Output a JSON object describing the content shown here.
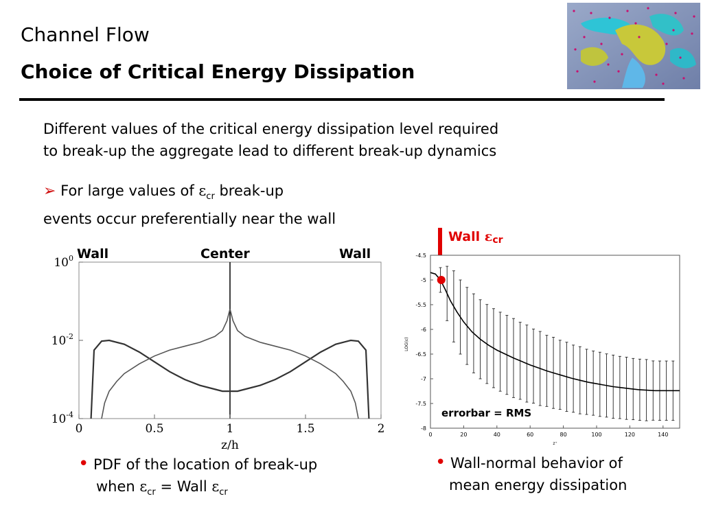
{
  "slide": {
    "title": "Channel Flow",
    "subtitle": "Choice of Critical Energy Dissipation",
    "intro_line1": "Different values of the critical energy dissipation level required",
    "intro_line2": "to break-up the aggregate lead to different break-up dynamics",
    "bullet_arrow": "➢",
    "bullet_pre": "For large values of ",
    "epsilon": "ε",
    "cr": "cr",
    "bullet_post": " break-up",
    "bullet_line2": "events occur preferentially near the wall",
    "caption_left_1": "PDF of the location of break-up",
    "caption_left_when": "when ",
    "caption_left_eq": " = Wall ",
    "caption_right_1": "Wall-normal behavior of",
    "caption_right_2": "mean energy dissipation",
    "bullet_dot": "•",
    "colors": {
      "accent": "#e00000",
      "text": "#000000"
    }
  },
  "chart_data": [
    {
      "type": "line",
      "xlabel": "z/h",
      "ylabel": "",
      "x_ticks": [
        "0",
        "0.5",
        "1",
        "1.5",
        "2"
      ],
      "y_ticks": [
        "10^0",
        "10^-2",
        "10^-4"
      ],
      "xlim": [
        0,
        2
      ],
      "ylim_log10": [
        -4,
        0
      ],
      "annotations": {
        "left": "Wall",
        "center": "Center",
        "right": "Wall"
      },
      "series": [
        {
          "x": [
            0.08,
            0.1,
            0.15,
            0.2,
            0.3,
            0.4,
            0.5,
            0.6,
            0.7,
            0.8,
            0.9,
            0.95,
            1.0,
            1.05,
            1.1,
            1.2,
            1.3,
            1.4,
            1.5,
            1.6,
            1.7,
            1.8,
            1.85,
            1.9,
            1.92
          ],
          "log10_y": [
            -4,
            -2.25,
            -2.02,
            -2.0,
            -2.1,
            -2.3,
            -2.55,
            -2.8,
            -3.0,
            -3.15,
            -3.25,
            -3.3,
            -3.3,
            -3.3,
            -3.25,
            -3.15,
            -3.0,
            -2.8,
            -2.55,
            -2.3,
            -2.1,
            -2.0,
            -2.02,
            -2.25,
            -4
          ]
        },
        {
          "x": [
            0.15,
            0.17,
            0.2,
            0.25,
            0.3,
            0.4,
            0.5,
            0.6,
            0.7,
            0.8,
            0.9,
            0.95,
            0.98,
            1.0,
            1.02,
            1.05,
            1.1,
            1.2,
            1.3,
            1.4,
            1.5,
            1.6,
            1.7,
            1.75,
            1.8,
            1.83,
            1.85
          ],
          "log10_y": [
            -4,
            -3.6,
            -3.3,
            -3.05,
            -2.85,
            -2.6,
            -2.4,
            -2.25,
            -2.15,
            -2.05,
            -1.9,
            -1.75,
            -1.5,
            -1.2,
            -1.5,
            -1.75,
            -1.9,
            -2.05,
            -2.15,
            -2.25,
            -2.4,
            -2.6,
            -2.85,
            -3.05,
            -3.3,
            -3.6,
            -4
          ]
        }
      ]
    },
    {
      "type": "line",
      "xlabel": "z⁺",
      "ylabel": "LOG(ε)",
      "xlim": [
        0,
        150
      ],
      "ylim": [
        -8,
        -4.5
      ],
      "x_ticks": [
        0,
        20,
        40,
        60,
        80,
        100,
        120,
        140
      ],
      "y_ticks": [
        -4.5,
        -5,
        -5.5,
        -6,
        -6.5,
        -7,
        -7.5,
        -8
      ],
      "annotation": "errorbar = RMS",
      "marker_label": "Wall ",
      "marker_label_sub": "cr",
      "marker": {
        "x": 6.5,
        "y": -5.0
      },
      "series": [
        {
          "x": [
            0,
            3,
            6,
            9,
            12,
            16,
            20,
            25,
            30,
            35,
            40,
            45,
            50,
            55,
            60,
            65,
            70,
            75,
            80,
            85,
            90,
            95,
            100,
            105,
            110,
            115,
            120,
            125,
            130,
            135,
            140,
            145,
            150
          ],
          "y": [
            -4.85,
            -4.88,
            -5.0,
            -5.2,
            -5.42,
            -5.65,
            -5.85,
            -6.05,
            -6.2,
            -6.32,
            -6.42,
            -6.5,
            -6.58,
            -6.65,
            -6.72,
            -6.78,
            -6.84,
            -6.89,
            -6.94,
            -6.99,
            -7.03,
            -7.07,
            -7.1,
            -7.13,
            -7.16,
            -7.18,
            -7.2,
            -7.22,
            -7.23,
            -7.24,
            -7.24,
            -7.24,
            -7.24
          ]
        }
      ],
      "errorbars": {
        "x": [
          6,
          10,
          14,
          18,
          22,
          26,
          30,
          34,
          38,
          42,
          46,
          50,
          54,
          58,
          62,
          66,
          70,
          74,
          78,
          82,
          86,
          90,
          94,
          98,
          102,
          106,
          110,
          114,
          118,
          122,
          126,
          130,
          134,
          138,
          142,
          146
        ],
        "half_width": [
          0.25,
          0.55,
          0.72,
          0.75,
          0.78,
          0.8,
          0.8,
          0.8,
          0.8,
          0.8,
          0.8,
          0.8,
          0.78,
          0.78,
          0.75,
          0.75,
          0.72,
          0.72,
          0.7,
          0.7,
          0.68,
          0.68,
          0.66,
          0.65,
          0.65,
          0.64,
          0.64,
          0.63,
          0.63,
          0.62,
          0.62,
          0.62,
          0.6,
          0.6,
          0.6,
          0.6
        ]
      }
    }
  ]
}
